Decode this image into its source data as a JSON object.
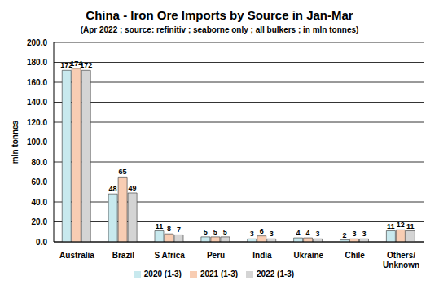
{
  "chart_data": {
    "type": "bar",
    "title": "China - Iron Ore Imports by Source in Jan-Mar",
    "subtitle": "(Apr 2022 ; source: refinitiv ; seaborne only ; all bulkers ; in mln tonnes)",
    "y_label": "mln tonnes",
    "categories": [
      "Australia",
      "Brazil",
      "S Africa",
      "Peru",
      "India",
      "Ukraine",
      "Chile",
      "Others/ Unknown"
    ],
    "series": [
      {
        "name": "2020 (1-3)",
        "color": "#c8e9ee",
        "values": [
          172,
          48,
          11,
          5,
          3,
          4,
          2,
          11
        ]
      },
      {
        "name": "2021 (1-3)",
        "color": "#f8cdb3",
        "values": [
          174,
          65,
          8,
          5,
          6,
          4,
          3,
          12
        ]
      },
      {
        "name": "2022 (1-3)",
        "color": "#d4d4d4",
        "values": [
          172,
          49,
          7,
          5,
          3,
          3,
          3,
          11
        ]
      }
    ],
    "ylim": [
      0,
      200
    ],
    "yticks": [
      {
        "value": 0,
        "label": "0.0"
      },
      {
        "value": 20,
        "label": "20.0"
      },
      {
        "value": 40,
        "label": "40.0"
      },
      {
        "value": 60,
        "label": "60.0"
      },
      {
        "value": 80,
        "label": "80.0"
      },
      {
        "value": 100,
        "label": "100.0"
      },
      {
        "value": 120,
        "label": "120.0"
      },
      {
        "value": 140,
        "label": "140.0"
      },
      {
        "value": 160,
        "label": "160.0"
      },
      {
        "value": 180,
        "label": "180.0"
      },
      {
        "value": 200,
        "label": "200.0"
      }
    ],
    "grid": true,
    "legend": "bottom",
    "data_labels": true
  }
}
